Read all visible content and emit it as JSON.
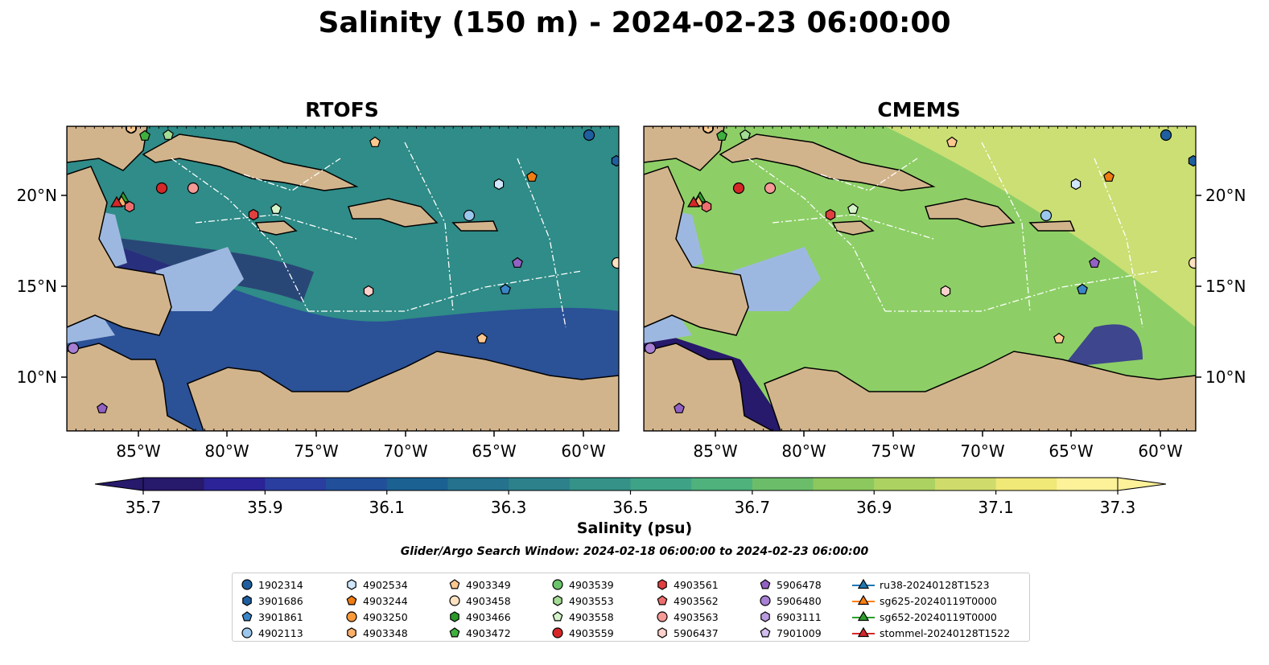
{
  "title": "Salinity (150 m) - 2024-02-23 06:00:00",
  "panels": [
    {
      "title": "RTOFS",
      "fill": "#2f8c88"
    },
    {
      "title": "CMEMS",
      "fill": "#8dcf66"
    }
  ],
  "lon_ticks": [
    "85°W",
    "80°W",
    "75°W",
    "70°W",
    "65°W",
    "60°W"
  ],
  "lat_ticks": [
    "20°N",
    "15°N",
    "10°N"
  ],
  "colorbar": {
    "label": "Salinity (psu)",
    "ticks": [
      "35.7",
      "35.9",
      "36.1",
      "36.3",
      "36.5",
      "36.7",
      "36.9",
      "37.1",
      "37.3"
    ],
    "colors": [
      "#27196b",
      "#2b2397",
      "#2a3ea0",
      "#214f99",
      "#1b6191",
      "#24728d",
      "#2d818b",
      "#349289",
      "#3ea386",
      "#4fb17c",
      "#6bbd6a",
      "#8cc85e",
      "#acd261",
      "#cfdc6c",
      "#f0e877",
      "#fdf19a"
    ]
  },
  "search_window": "Glider/Argo Search Window: 2024-02-18 06:00:00 to 2024-02-23 06:00:00",
  "legend": [
    {
      "label": "1902314",
      "marker": "circle",
      "color": "#1f5f9f"
    },
    {
      "label": "3901686",
      "marker": "hexagon",
      "color": "#1f5f9f"
    },
    {
      "label": "3901861",
      "marker": "pentagon",
      "color": "#3a86c8"
    },
    {
      "label": "4902113",
      "marker": "circle",
      "color": "#9cc7ec"
    },
    {
      "label": "4902534",
      "marker": "hexagon",
      "color": "#cfe6fb"
    },
    {
      "label": "4903244",
      "marker": "pentagon",
      "color": "#ef7d12"
    },
    {
      "label": "4903250",
      "marker": "circle",
      "color": "#fb9a3b"
    },
    {
      "label": "4903348",
      "marker": "hexagon",
      "color": "#fbb06a"
    },
    {
      "label": "4903349",
      "marker": "pentagon",
      "color": "#fdc890"
    },
    {
      "label": "4903458",
      "marker": "circle",
      "color": "#fde2c2"
    },
    {
      "label": "4903466",
      "marker": "hexagon",
      "color": "#2a9a2a"
    },
    {
      "label": "4903472",
      "marker": "pentagon",
      "color": "#3fb03f"
    },
    {
      "label": "4903539",
      "marker": "circle",
      "color": "#6bc46b"
    },
    {
      "label": "4903553",
      "marker": "hexagon",
      "color": "#a3dc94"
    },
    {
      "label": "4903558",
      "marker": "pentagon",
      "color": "#d4f3c9"
    },
    {
      "label": "4903559",
      "marker": "circle",
      "color": "#d62728"
    },
    {
      "label": "4903561",
      "marker": "hexagon",
      "color": "#e0403f"
    },
    {
      "label": "4903562",
      "marker": "pentagon",
      "color": "#ee6e6e"
    },
    {
      "label": "4903563",
      "marker": "circle",
      "color": "#f59a96"
    },
    {
      "label": "5906437",
      "marker": "hexagon",
      "color": "#fcd0cb"
    },
    {
      "label": "5906478",
      "marker": "pentagon",
      "color": "#9361c4"
    },
    {
      "label": "5906480",
      "marker": "circle",
      "color": "#a77fd3"
    },
    {
      "label": "6903111",
      "marker": "hexagon",
      "color": "#bb9be0"
    },
    {
      "label": "7901009",
      "marker": "pentagon",
      "color": "#d2bdf0"
    },
    {
      "label": "ru38-20240128T1523",
      "marker": "triangle-line",
      "color": "#1f77b4"
    },
    {
      "label": "sg625-20240119T0000",
      "marker": "triangle-line",
      "color": "#ff7f0e"
    },
    {
      "label": "sg652-20240119T0000",
      "marker": "triangle-line",
      "color": "#2ca02c"
    },
    {
      "label": "stommel-20240128T1522",
      "marker": "triangle-line",
      "color": "#d62728"
    }
  ]
}
